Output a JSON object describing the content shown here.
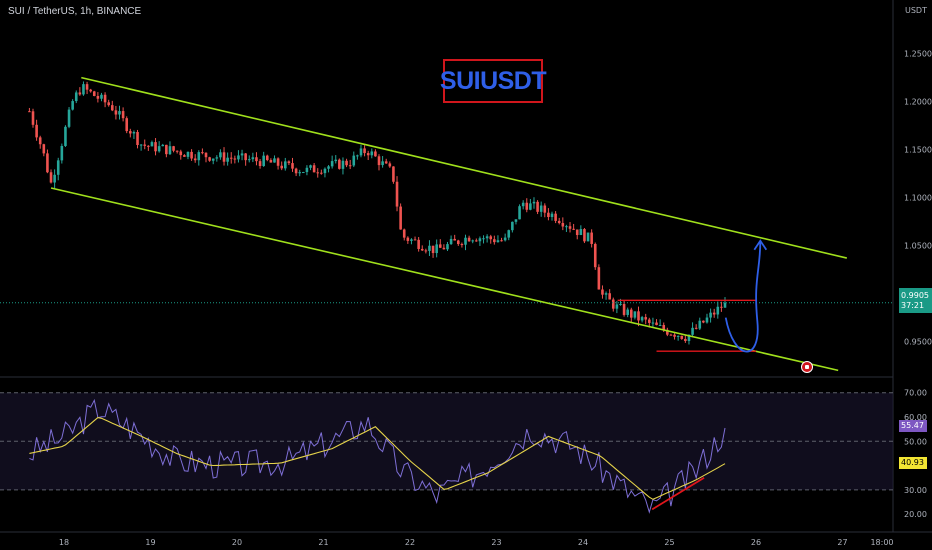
{
  "header": {
    "symbol_line": "SUI / TetherUS, 1h, BINANCE",
    "banner": "SUIUSDT",
    "unit": "USDT"
  },
  "price_tag": {
    "value": "0.9905",
    "countdown": "37:21"
  },
  "rsi_tag": {
    "value": "55.47"
  },
  "rsi_ma_tag": {
    "value": "40.93"
  },
  "colors": {
    "up": "#26a69a",
    "down": "#ef5350",
    "channel": "#a0e01c",
    "range": "#e0161c",
    "arrow": "#2f5fe8",
    "rsi": "#7e6fd6",
    "rsi_ma": "#e5d34a",
    "rsi_band": "#1b1530"
  },
  "chart_data": [
    {
      "type": "candlestick",
      "title": "",
      "x_ticks": [
        "18",
        "19",
        "20",
        "21",
        "22",
        "23",
        "24",
        "25",
        "26",
        "27",
        "18:00"
      ],
      "y_ticks": [
        "1.2500",
        "1.2000",
        "1.1500",
        "1.1000",
        "1.0500",
        "1.0000",
        "0.9500"
      ],
      "ylim": [
        0.91,
        1.26
      ],
      "anchors": [
        {
          "t": 17.6,
          "p": 1.19
        },
        {
          "t": 17.75,
          "p": 1.15
        },
        {
          "t": 17.85,
          "p": 1.115
        },
        {
          "t": 18.1,
          "p": 1.2
        },
        {
          "t": 18.2,
          "p": 1.215
        },
        {
          "t": 18.55,
          "p": 1.195
        },
        {
          "t": 18.9,
          "p": 1.155
        },
        {
          "t": 19.5,
          "p": 1.145
        },
        {
          "t": 20.3,
          "p": 1.138
        },
        {
          "t": 20.8,
          "p": 1.128
        },
        {
          "t": 21.3,
          "p": 1.137
        },
        {
          "t": 21.5,
          "p": 1.15
        },
        {
          "t": 21.8,
          "p": 1.125
        },
        {
          "t": 21.9,
          "p": 1.06
        },
        {
          "t": 22.3,
          "p": 1.045
        },
        {
          "t": 22.7,
          "p": 1.06
        },
        {
          "t": 23.1,
          "p": 1.055
        },
        {
          "t": 23.3,
          "p": 1.095
        },
        {
          "t": 23.7,
          "p": 1.08
        },
        {
          "t": 24.1,
          "p": 1.055
        },
        {
          "t": 24.2,
          "p": 1.0
        },
        {
          "t": 24.4,
          "p": 0.985
        },
        {
          "t": 24.85,
          "p": 0.965
        },
        {
          "t": 25.2,
          "p": 0.955
        },
        {
          "t": 25.65,
          "p": 0.9905
        }
      ],
      "last_price": 0.9905,
      "annotations": {
        "channel_upper": [
          [
            18.2,
            1.225
          ],
          [
            27.05,
            1.037
          ]
        ],
        "channel_lower": [
          [
            17.85,
            1.11
          ],
          [
            26.95,
            0.92
          ]
        ],
        "range_top": [
          [
            24.4,
            0.993
          ],
          [
            26.0,
            0.993
          ]
        ],
        "range_bottom": [
          [
            24.85,
            0.94
          ],
          [
            26.0,
            0.94
          ]
        ],
        "projection": [
          [
            25.65,
            0.975
          ],
          [
            25.9,
            0.94
          ],
          [
            26.05,
            1.055
          ]
        ]
      }
    },
    {
      "type": "line",
      "title": "RSI",
      "y_ticks": [
        "70.00",
        "60.00",
        "50.00",
        "40.00",
        "30.00",
        "20.00"
      ],
      "ylim": [
        16,
        72
      ],
      "levels": [
        70,
        50,
        30
      ],
      "series": [
        {
          "anchors": [
            {
              "t": 17.6,
              "v": 45
            },
            {
              "t": 18.0,
              "v": 52
            },
            {
              "t": 18.4,
              "v": 64
            },
            {
              "t": 18.8,
              "v": 55
            },
            {
              "t": 19.3,
              "v": 42
            },
            {
              "t": 19.9,
              "v": 40
            },
            {
              "t": 20.6,
              "v": 42
            },
            {
              "t": 21.2,
              "v": 52
            },
            {
              "t": 21.5,
              "v": 58
            },
            {
              "t": 21.9,
              "v": 38
            },
            {
              "t": 22.3,
              "v": 28
            },
            {
              "t": 22.8,
              "v": 38
            },
            {
              "t": 23.4,
              "v": 55
            },
            {
              "t": 23.9,
              "v": 48
            },
            {
              "t": 24.5,
              "v": 30
            },
            {
              "t": 24.8,
              "v": 22
            },
            {
              "t": 25.3,
              "v": 38
            },
            {
              "t": 25.65,
              "v": 55.47
            }
          ]
        },
        {
          "anchors": [
            {
              "t": 17.6,
              "v": 45
            },
            {
              "t": 18.0,
              "v": 48
            },
            {
              "t": 18.4,
              "v": 60
            },
            {
              "t": 18.9,
              "v": 52
            },
            {
              "t": 19.3,
              "v": 45
            },
            {
              "t": 19.7,
              "v": 40
            },
            {
              "t": 20.5,
              "v": 41
            },
            {
              "t": 21.1,
              "v": 47
            },
            {
              "t": 21.6,
              "v": 56
            },
            {
              "t": 22.0,
              "v": 42
            },
            {
              "t": 22.4,
              "v": 30
            },
            {
              "t": 22.9,
              "v": 37
            },
            {
              "t": 23.6,
              "v": 52
            },
            {
              "t": 24.2,
              "v": 44
            },
            {
              "t": 24.8,
              "v": 26
            },
            {
              "t": 25.3,
              "v": 34
            },
            {
              "t": 25.65,
              "v": 40.93
            }
          ]
        }
      ],
      "annotations": {
        "divergence": [
          [
            24.8,
            22
          ],
          [
            25.4,
            35
          ]
        ]
      }
    }
  ]
}
